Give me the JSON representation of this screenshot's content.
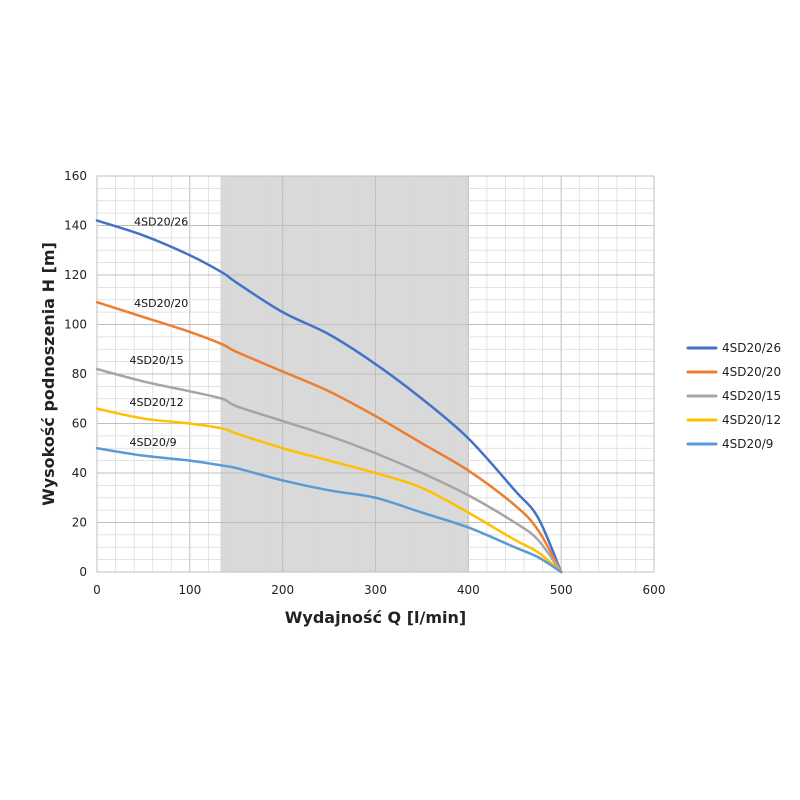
{
  "chart_data": {
    "type": "line",
    "title": "",
    "xlabel": "Wydajność Q [l/min]",
    "ylabel": "Wysokość podnoszenia H [m]",
    "xlim": [
      0,
      600
    ],
    "ylim": [
      0,
      160
    ],
    "x_major_ticks": [
      0,
      100,
      200,
      300,
      400,
      500,
      600
    ],
    "y_major_ticks": [
      0,
      20,
      40,
      60,
      80,
      100,
      120,
      140,
      160
    ],
    "x_minor_step": 20,
    "y_minor_step": 5,
    "grid": true,
    "shaded_range_x": [
      133,
      400
    ],
    "shaded_color": "#d9d9d9",
    "legend_position": "right",
    "series": [
      {
        "name": "4SD20/26",
        "color": "#4472c4",
        "label_at": [
          40,
          140
        ],
        "points": [
          [
            0,
            142
          ],
          [
            50,
            136
          ],
          [
            100,
            128
          ],
          [
            135,
            121
          ],
          [
            150,
            117
          ],
          [
            200,
            105
          ],
          [
            250,
            96
          ],
          [
            300,
            84
          ],
          [
            350,
            70
          ],
          [
            400,
            54
          ],
          [
            450,
            33
          ],
          [
            475,
            22
          ],
          [
            500,
            0
          ]
        ]
      },
      {
        "name": "4SD20/20",
        "color": "#ed7d31",
        "label_at": [
          40,
          107
        ],
        "points": [
          [
            0,
            109
          ],
          [
            50,
            103
          ],
          [
            100,
            97
          ],
          [
            135,
            92
          ],
          [
            150,
            89
          ],
          [
            200,
            81
          ],
          [
            250,
            73
          ],
          [
            300,
            63
          ],
          [
            350,
            52
          ],
          [
            400,
            41
          ],
          [
            450,
            27
          ],
          [
            475,
            17
          ],
          [
            500,
            0
          ]
        ]
      },
      {
        "name": "4SD20/15",
        "color": "#a5a5a5",
        "label_at": [
          35,
          84
        ],
        "points": [
          [
            0,
            82
          ],
          [
            50,
            77
          ],
          [
            100,
            73
          ],
          [
            135,
            70
          ],
          [
            150,
            67
          ],
          [
            200,
            61
          ],
          [
            250,
            55
          ],
          [
            300,
            48
          ],
          [
            350,
            40
          ],
          [
            400,
            31
          ],
          [
            450,
            20
          ],
          [
            475,
            13
          ],
          [
            500,
            0
          ]
        ]
      },
      {
        "name": "4SD20/12",
        "color": "#ffc000",
        "label_at": [
          35,
          67
        ],
        "points": [
          [
            0,
            66
          ],
          [
            50,
            62
          ],
          [
            100,
            60
          ],
          [
            135,
            58
          ],
          [
            150,
            56
          ],
          [
            200,
            50
          ],
          [
            250,
            45
          ],
          [
            300,
            40
          ],
          [
            350,
            34
          ],
          [
            400,
            24
          ],
          [
            450,
            13
          ],
          [
            475,
            8
          ],
          [
            500,
            0
          ]
        ]
      },
      {
        "name": "4SD20/9",
        "color": "#5b9bd5",
        "label_at": [
          35,
          51
        ],
        "points": [
          [
            0,
            50
          ],
          [
            50,
            47
          ],
          [
            100,
            45
          ],
          [
            135,
            43
          ],
          [
            150,
            42
          ],
          [
            200,
            37
          ],
          [
            250,
            33
          ],
          [
            300,
            30
          ],
          [
            350,
            24
          ],
          [
            400,
            18
          ],
          [
            450,
            10
          ],
          [
            475,
            6
          ],
          [
            500,
            0
          ]
        ]
      }
    ]
  }
}
